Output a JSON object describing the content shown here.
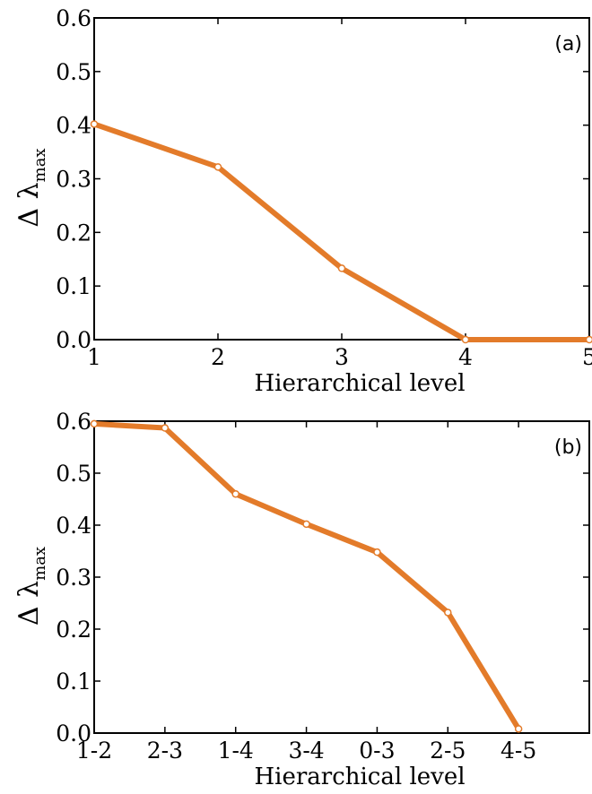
{
  "chart_data": [
    {
      "type": "line",
      "panel_label": "(a)",
      "xlabel": "Hierarchical level",
      "ylabel": {
        "symbol": "Δ λ",
        "subscript": "max"
      },
      "x": [
        1,
        2,
        3,
        4,
        5
      ],
      "x_tick_labels": [
        "1",
        "2",
        "3",
        "4",
        "5"
      ],
      "xlim": [
        1,
        5
      ],
      "y_tick_labels": [
        "0.0",
        "0.1",
        "0.2",
        "0.3",
        "0.4",
        "0.5",
        "0.6"
      ],
      "ylim": [
        0.0,
        0.6
      ],
      "series": [
        {
          "values": [
            0.402,
            0.322,
            0.133,
            0.0,
            0.0
          ],
          "color": "#e37b2a"
        }
      ],
      "grid": false,
      "legend": "none"
    },
    {
      "type": "line",
      "panel_label": "(b)",
      "xlabel": "Hierarchical level",
      "ylabel": {
        "symbol": "Δ λ",
        "subscript": "max"
      },
      "categories": [
        "1-2",
        "2-3",
        "1-4",
        "3-4",
        "0-3",
        "2-5",
        "4-5"
      ],
      "xlim": [
        0,
        7
      ],
      "y_tick_labels": [
        "0.0",
        "0.1",
        "0.2",
        "0.3",
        "0.4",
        "0.5",
        "0.6"
      ],
      "ylim": [
        0.0,
        0.6
      ],
      "series": [
        {
          "values": [
            0.595,
            0.587,
            0.46,
            0.402,
            0.348,
            0.232,
            0.008
          ],
          "color": "#e37b2a"
        }
      ],
      "grid": false,
      "legend": "none"
    }
  ]
}
